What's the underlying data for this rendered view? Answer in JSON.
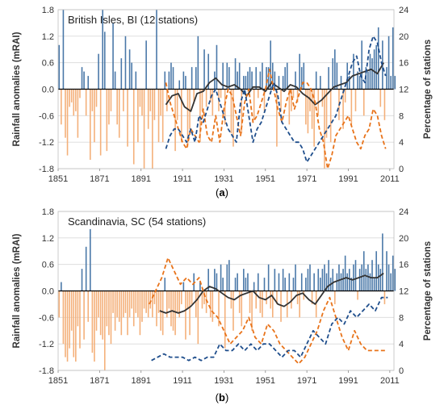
{
  "chart_data": [
    {
      "type": "bar",
      "panel_caption": "(a)",
      "title": "British Isles, BI (12 stations)",
      "ylabel": "Rainfall anomalies (mRAI)",
      "y2label": "Percentage of stations",
      "xlim": [
        1851,
        2013
      ],
      "ylim": [
        -1.8,
        1.8
      ],
      "y2lim": [
        0,
        24
      ],
      "xticks": [
        "1851",
        "1871",
        "1891",
        "1911",
        "1931",
        "1951",
        "1971",
        "1991",
        "2011"
      ],
      "yticks": [
        "1.8",
        "1.2",
        "0.6",
        "0.0",
        "-0.6",
        "-1.2",
        "-1.8"
      ],
      "y2ticks": [
        "24",
        "20",
        "16",
        "12",
        "8",
        "4",
        "0"
      ],
      "grid": "horizontal",
      "bar_colors": {
        "positive": "#4a78a8",
        "negative": "#f4b07a"
      },
      "bars": {
        "start_year": 1851,
        "values": [
          1.0,
          -0.8,
          1.8,
          -1.1,
          -1.5,
          -0.4,
          -0.3,
          -0.6,
          -0.5,
          -1.1,
          -0.2,
          0.5,
          0.4,
          -0.6,
          0.3,
          -1.6,
          -0.5,
          -1.2,
          -0.4,
          0.8,
          -1.5,
          1.8,
          1.3,
          -1.4,
          -0.8,
          -0.5,
          1.5,
          0.4,
          -0.8,
          -1.1,
          0.7,
          -0.5,
          1.2,
          -1.3,
          0.9,
          0.6,
          -1.7,
          0.4,
          -1.2,
          -0.4,
          -0.6,
          -1.8,
          1.1,
          -0.9,
          -0.5,
          -1.8,
          -0.7,
          1.8,
          -1.2,
          -0.6,
          -1.2,
          0.4,
          -0.5,
          0.4,
          0.6,
          0.5,
          -1.4,
          -0.7,
          0.2,
          -1.2,
          0.4,
          0.3,
          -1.3,
          -0.9,
          0.5,
          -0.3,
          0.5,
          1.2,
          -1.2,
          -0.5,
          0.9,
          -0.4,
          0.8,
          -0.3,
          -0.6,
          0.4,
          1.0,
          -0.5,
          -0.2,
          0.6,
          -0.8,
          0.6,
          0.5,
          -1.0,
          -1.3,
          0.7,
          0.4,
          0.6,
          -1.0,
          0.3,
          0.3,
          0.4,
          0.5,
          0.4,
          -0.7,
          0.5,
          -0.2,
          0.4,
          0.6,
          -0.5,
          0.5,
          0.5,
          1.1,
          0.6,
          0.4,
          -1.3,
          0.3,
          -0.5,
          0.3,
          0.5,
          0.6,
          -0.8,
          -0.5,
          -0.2,
          0.4,
          -0.3,
          0.8,
          0.5,
          0.6,
          -0.8,
          -1.0,
          -0.5,
          -0.9,
          -1.3,
          0.4,
          -0.6,
          0.3,
          -0.4,
          -1.8,
          -1.1,
          0.5,
          -1.2,
          0.7,
          0.9,
          0.6,
          -0.7,
          0.3,
          -0.9,
          -0.3,
          0.6,
          0.3,
          -0.8,
          0.8,
          -0.5,
          0.4,
          0.3,
          1.1,
          -0.6,
          0.5,
          0.4,
          0.8,
          0.7,
          0.9,
          1.0,
          1.4,
          -0.4,
          1.1,
          -0.7,
          0.5,
          1.2,
          0.3,
          1.4,
          0.3
        ]
      },
      "series": [
        {
          "axis": "left",
          "color": "#333333",
          "dash": "solid",
          "x": [
            1903,
            1906,
            1909,
            1912,
            1915,
            1918,
            1921,
            1924,
            1927,
            1930,
            1933,
            1936,
            1939,
            1942,
            1945,
            1948,
            1951,
            1954,
            1957,
            1960,
            1963,
            1966,
            1969,
            1972,
            1975,
            1978,
            1981,
            1984,
            1987,
            1990,
            1993,
            1996,
            1999,
            2002,
            2005,
            2008
          ],
          "y": [
            -0.35,
            -0.15,
            -0.1,
            -0.4,
            -0.5,
            -0.1,
            -0.05,
            0.15,
            0.25,
            0.1,
            0.05,
            0.1,
            0.0,
            -0.15,
            0.05,
            0.05,
            -0.05,
            0.15,
            0.05,
            -0.05,
            0.1,
            0.05,
            -0.1,
            -0.2,
            -0.35,
            -0.25,
            -0.1,
            0.05,
            0.1,
            0.15,
            0.3,
            0.35,
            0.4,
            0.45,
            0.35,
            0.6
          ]
        },
        {
          "axis": "right",
          "color": "#e8731a",
          "dash": "dashed",
          "x": [
            1903,
            1905,
            1907,
            1909,
            1911,
            1913,
            1915,
            1917,
            1919,
            1921,
            1923,
            1925,
            1927,
            1929,
            1931,
            1933,
            1935,
            1937,
            1939,
            1941,
            1943,
            1945,
            1947,
            1949,
            1951,
            1953,
            1955,
            1957,
            1959,
            1961,
            1963,
            1965,
            1967,
            1969,
            1971,
            1973,
            1975,
            1977,
            1979,
            1981,
            1983,
            1985,
            1987,
            1989,
            1991,
            1993,
            1995,
            1997,
            1999,
            2001,
            2003,
            2005,
            2007,
            2009
          ],
          "y": [
            13,
            10,
            8,
            6,
            4,
            3,
            6,
            5,
            4,
            9,
            5,
            4,
            8,
            4,
            9,
            12,
            11,
            8,
            5,
            10,
            12,
            7,
            8,
            10,
            12,
            15,
            12,
            9,
            7,
            10,
            12,
            9,
            11,
            13,
            13,
            12,
            10,
            6,
            4,
            0,
            2,
            5,
            6,
            7,
            8,
            6,
            4,
            3,
            5,
            6,
            9,
            8,
            5,
            3
          ]
        },
        {
          "axis": "right",
          "color": "#1f4e8c",
          "dash": "dashed",
          "x": [
            1903,
            1905,
            1907,
            1909,
            1911,
            1913,
            1915,
            1917,
            1919,
            1921,
            1923,
            1925,
            1927,
            1929,
            1931,
            1933,
            1935,
            1937,
            1939,
            1941,
            1943,
            1945,
            1947,
            1949,
            1951,
            1953,
            1955,
            1957,
            1959,
            1961,
            1963,
            1965,
            1967,
            1969,
            1971,
            1973,
            1975,
            1977,
            1979,
            1981,
            1983,
            1985,
            1987,
            1989,
            1991,
            1993,
            1995,
            1997,
            1999,
            2001,
            2003,
            2005,
            2007,
            2009
          ],
          "y": [
            3,
            5,
            6,
            6,
            5,
            4,
            6,
            4,
            8,
            7,
            9,
            11,
            12,
            10,
            8,
            6,
            5,
            4,
            10,
            12,
            8,
            4,
            6,
            7,
            9,
            11,
            13,
            11,
            7,
            6,
            5,
            4,
            4,
            3,
            1,
            2,
            3,
            4,
            5,
            6,
            7,
            8,
            10,
            12,
            14,
            16,
            17,
            14,
            13,
            18,
            20,
            19,
            16,
            14
          ]
        }
      ]
    },
    {
      "type": "bar",
      "panel_caption": "(b)",
      "title": "Scandinavia, SC (54 stations)",
      "ylabel": "Rainfall anomalies (mRAI)",
      "y2label": "Percentage of stations",
      "xlim": [
        1851,
        2013
      ],
      "ylim": [
        -1.8,
        1.8
      ],
      "y2lim": [
        0,
        24
      ],
      "xticks": [
        "1851",
        "1871",
        "1891",
        "1911",
        "1931",
        "1951",
        "1971",
        "1991",
        "2011"
      ],
      "yticks": [
        "1.8",
        "1.2",
        "0.6",
        "0.0",
        "-0.6",
        "-1.2",
        "-1.8"
      ],
      "y2ticks": [
        "24",
        "20",
        "16",
        "12",
        "8",
        "4",
        "0"
      ],
      "grid": "horizontal",
      "bar_colors": {
        "positive": "#4a78a8",
        "negative": "#f4b07a"
      },
      "bars": {
        "start_year": 1851,
        "values": [
          -0.6,
          0.2,
          -1.2,
          -1.5,
          -1.6,
          -1.3,
          -0.9,
          -1.5,
          -1.6,
          -0.8,
          -1.3,
          0.5,
          -1.1,
          1.0,
          -0.7,
          1.4,
          -1.4,
          -1.6,
          -0.9,
          -0.6,
          -1.0,
          -1.1,
          -1.8,
          -0.8,
          -1.0,
          -1.2,
          -0.5,
          -0.9,
          -0.6,
          -0.7,
          -1.0,
          -0.6,
          -0.5,
          -1.0,
          -0.6,
          -0.4,
          -0.8,
          -0.5,
          -0.6,
          -1.0,
          -0.7,
          -0.4,
          -0.5,
          -0.6,
          -0.4,
          -0.6,
          -0.3,
          -0.8,
          -0.5,
          -0.9,
          -1.0,
          0.3,
          -0.6,
          -0.4,
          -0.8,
          -0.9,
          -1.0,
          -0.5,
          -0.6,
          -0.3,
          0.2,
          -1.1,
          -0.4,
          -1.0,
          -0.3,
          0.4,
          -0.6,
          -1.2,
          0.2,
          -0.4,
          -0.3,
          -0.5,
          0.5,
          -0.6,
          -0.7,
          0.5,
          0.4,
          -0.8,
          0.6,
          0.3,
          -1.3,
          0.6,
          0.7,
          -0.4,
          -0.9,
          0.3,
          0.4,
          -0.5,
          -0.8,
          0.5,
          0.3,
          0.4,
          -0.5,
          -0.9,
          0.2,
          -0.4,
          0.4,
          -0.5,
          -0.6,
          0.3,
          -0.3,
          0.6,
          -0.4,
          -0.6,
          0.5,
          -0.3,
          0.4,
          -0.7,
          0.5,
          0.3,
          -0.6,
          0.4,
          -0.4,
          0.3,
          0.6,
          -0.3,
          -0.6,
          0.4,
          -0.2,
          0.3,
          0.5,
          0.6,
          -0.3,
          0.4,
          -0.6,
          0.5,
          0.3,
          0.5,
          0.6,
          0.4,
          0.7,
          0.3,
          0.5,
          -0.3,
          0.4,
          0.6,
          0.4,
          0.5,
          0.8,
          0.4,
          0.5,
          0.3,
          0.6,
          0.7,
          -0.2,
          0.5,
          0.6,
          0.9,
          0.5,
          0.6,
          0.4,
          0.7,
          0.3,
          0.9,
          0.6,
          0.5,
          1.3,
          -0.3,
          0.9,
          0.6,
          0.4,
          0.8,
          0.5
        ]
      },
      "series": [
        {
          "axis": "left",
          "color": "#333333",
          "dash": "solid",
          "x": [
            1900,
            1903,
            1906,
            1909,
            1912,
            1915,
            1918,
            1921,
            1924,
            1927,
            1930,
            1933,
            1936,
            1939,
            1942,
            1945,
            1948,
            1951,
            1954,
            1957,
            1960,
            1963,
            1966,
            1969,
            1972,
            1975,
            1978,
            1981,
            1984,
            1987,
            1990,
            1993,
            1996,
            1999,
            2002,
            2005,
            2008
          ],
          "y": [
            -0.45,
            -0.5,
            -0.45,
            -0.5,
            -0.45,
            -0.35,
            -0.2,
            0.0,
            0.1,
            0.05,
            -0.05,
            -0.15,
            -0.2,
            -0.1,
            -0.05,
            0.0,
            -0.15,
            -0.2,
            -0.1,
            -0.3,
            -0.35,
            -0.25,
            -0.1,
            -0.05,
            -0.2,
            -0.3,
            -0.1,
            0.1,
            0.2,
            0.25,
            0.3,
            0.25,
            0.3,
            0.35,
            0.3,
            0.3,
            0.4
          ]
        },
        {
          "axis": "right",
          "color": "#e8731a",
          "dash": "dashed",
          "x": [
            1895,
            1898,
            1901,
            1904,
            1907,
            1910,
            1913,
            1916,
            1919,
            1922,
            1925,
            1928,
            1931,
            1934,
            1937,
            1940,
            1943,
            1946,
            1949,
            1952,
            1955,
            1958,
            1961,
            1964,
            1967,
            1970,
            1973,
            1976,
            1979,
            1982,
            1985,
            1988,
            1991,
            1994,
            1997,
            2000,
            2003,
            2006,
            2009
          ],
          "y": [
            10,
            12,
            14,
            17,
            15,
            13,
            14,
            13,
            14,
            11,
            9,
            8,
            6,
            4,
            5,
            6,
            8,
            5,
            4,
            7,
            6,
            4,
            3,
            2,
            1,
            2,
            4,
            6,
            9,
            11,
            8,
            5,
            3,
            6,
            4,
            3,
            3,
            3,
            3
          ]
        },
        {
          "axis": "right",
          "color": "#1f4e8c",
          "dash": "dashed",
          "x": [
            1896,
            1899,
            1902,
            1905,
            1908,
            1911,
            1914,
            1917,
            1920,
            1923,
            1926,
            1929,
            1932,
            1935,
            1938,
            1941,
            1944,
            1947,
            1950,
            1953,
            1956,
            1959,
            1962,
            1965,
            1968,
            1971,
            1974,
            1977,
            1980,
            1983,
            1986,
            1989,
            1992,
            1995,
            1998,
            2001,
            2004,
            2007,
            2010
          ],
          "y": [
            1.5,
            2,
            2.5,
            2,
            2,
            2,
            1.5,
            2,
            1.5,
            2,
            2,
            4,
            3,
            3,
            4,
            3,
            4,
            3,
            4,
            4,
            3,
            2,
            3,
            3,
            2,
            4,
            6,
            5,
            4,
            7,
            8,
            7,
            9,
            8,
            9,
            10,
            9,
            11,
            11
          ]
        }
      ]
    }
  ]
}
